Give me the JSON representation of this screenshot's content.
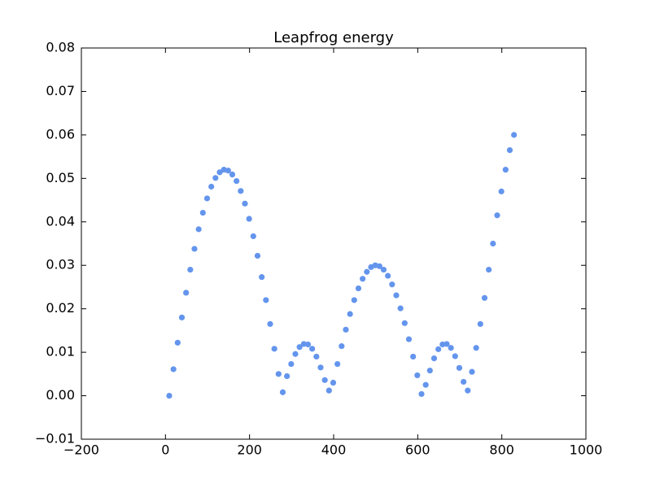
{
  "chart_data": {
    "type": "scatter",
    "title": "Leapfrog energy",
    "color": "#6495ed",
    "x": [
      9,
      19,
      29,
      39,
      49,
      59,
      69,
      79,
      89,
      99,
      109,
      119,
      129,
      139,
      149,
      159,
      169,
      179,
      189,
      199,
      209,
      219,
      229,
      239,
      249,
      259,
      269,
      279,
      289,
      299,
      309,
      319,
      329,
      339,
      349,
      359,
      369,
      379,
      389,
      399,
      409,
      419,
      429,
      439,
      449,
      459,
      469,
      479,
      489,
      499,
      509,
      519,
      529,
      539,
      549,
      559,
      569,
      579,
      589,
      599,
      609,
      619,
      629,
      639,
      649,
      659,
      669,
      679,
      689,
      699,
      709,
      719,
      729,
      739,
      749,
      759,
      769,
      779,
      789,
      799,
      809,
      819,
      829
    ],
    "values": [
      0,
      0.0061,
      0.0122,
      0.018,
      0.0237,
      0.029,
      0.0338,
      0.0383,
      0.0421,
      0.0454,
      0.0481,
      0.0501,
      0.0514,
      0.052,
      0.0518,
      0.0509,
      0.0494,
      0.0471,
      0.0442,
      0.0407,
      0.0367,
      0.0322,
      0.0273,
      0.022,
      0.0165,
      0.0108,
      0.005,
      0.0008,
      0.0045,
      0.0073,
      0.0096,
      0.0112,
      0.0119,
      0.0118,
      0.0108,
      0.009,
      0.0065,
      0.0036,
      0.0012,
      0.003,
      0.0073,
      0.0114,
      0.0152,
      0.0188,
      0.022,
      0.0247,
      0.0269,
      0.0285,
      0.0296,
      0.03,
      0.0298,
      0.029,
      0.0276,
      0.0256,
      0.0231,
      0.0201,
      0.0167,
      0.013,
      0.009,
      0.0047,
      0.0004,
      0.0025,
      0.0058,
      0.0086,
      0.0107,
      0.0118,
      0.0119,
      0.011,
      0.0091,
      0.0064,
      0.0032,
      0.0012,
      0.0055,
      0.011,
      0.0165,
      0.0225,
      0.029,
      0.035,
      0.0415,
      0.047,
      0.052,
      0.0565,
      0.06
    ],
    "xlim": [
      -200,
      1000
    ],
    "ylim": [
      -0.01,
      0.08
    ],
    "xticks": [
      {
        "value": -200,
        "label": "−200"
      },
      0,
      200,
      400,
      600,
      800,
      1000
    ],
    "yticks": [
      {
        "value": -0.01,
        "label": "−0.01"
      },
      {
        "value": 0,
        "label": "0.00"
      },
      0.01,
      0.02,
      0.03,
      0.04,
      0.05,
      0.06,
      0.07,
      0.08
    ]
  }
}
